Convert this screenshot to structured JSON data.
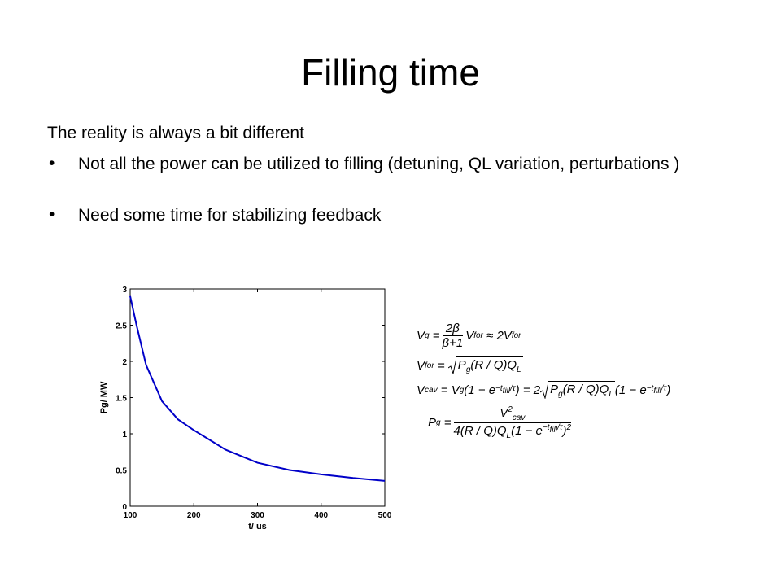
{
  "title": "Filling time",
  "body": {
    "intro": "The reality is always a bit different",
    "bullets": [
      "Not all the power can be utilized to filling (detuning, QL variation, perturbations )",
      "Need some time for stabilizing feedback"
    ]
  },
  "equations": [
    [
      "V",
      "g",
      "=",
      "2β",
      "β+1",
      "V",
      "for",
      "≈ 2",
      "V",
      "for"
    ],
    [
      "V",
      "for",
      "=",
      "P",
      "g",
      "(R / Q)Q",
      "L"
    ],
    [
      "V",
      "cav",
      "=",
      "V",
      "g",
      "(1 − e",
      "−t",
      "fill",
      "/τ",
      ")",
      "= 2",
      "P",
      "g",
      "(R / Q)Q",
      "L",
      "(1 − e",
      "−t",
      "fill",
      "/τ",
      ")"
    ],
    [
      "P",
      "g",
      "=",
      "V",
      "cav",
      "2",
      "4(R / Q)Q",
      "L",
      "(1 − e",
      "−t",
      "fill",
      "/τ",
      ")",
      "2"
    ]
  ],
  "chart_data": {
    "type": "line",
    "xlabel": "t/ us",
    "ylabel": "Pg/ MW",
    "x": [
      100,
      110,
      125,
      150,
      175,
      200,
      250,
      300,
      350,
      400,
      450,
      500
    ],
    "series": [
      {
        "color": "#0000c8",
        "values": [
          2.9,
          2.5,
          1.95,
          1.45,
          1.2,
          1.05,
          0.78,
          0.6,
          0.5,
          0.44,
          0.39,
          0.35
        ]
      }
    ],
    "xlim": [
      100,
      500
    ],
    "ylim": [
      0,
      3
    ],
    "xticks": [
      100,
      200,
      300,
      400,
      500
    ],
    "yticks": [
      0,
      0.5,
      1,
      1.5,
      2,
      2.5,
      3
    ]
  }
}
